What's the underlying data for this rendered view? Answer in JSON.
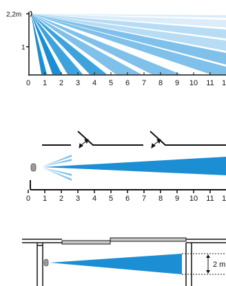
{
  "colors": {
    "beam_lightest": "#dcedf9",
    "beam_light": "#b7dcf4",
    "beam_mid": "#7fc1ea",
    "beam_dark": "#3ea3dd",
    "beam_darkest": "#1b8ed4",
    "axis": "#111111",
    "wall": "#111111",
    "sensor": "#9a9a9a",
    "glass": "#c9c9c9"
  },
  "side_view": {
    "height_label": "2,2m",
    "y_tick_label": "1",
    "x_ticks": [
      "0",
      "1",
      "2",
      "3",
      "4",
      "5",
      "6",
      "7",
      "8",
      "9",
      "10",
      "11",
      "1"
    ]
  },
  "top_view": {
    "x_ticks": [
      "0",
      "1",
      "2",
      "3",
      "4",
      "5",
      "6",
      "7",
      "8",
      "9",
      "10",
      "11",
      "1"
    ]
  },
  "corridor_view": {
    "width_label": "2 m"
  }
}
